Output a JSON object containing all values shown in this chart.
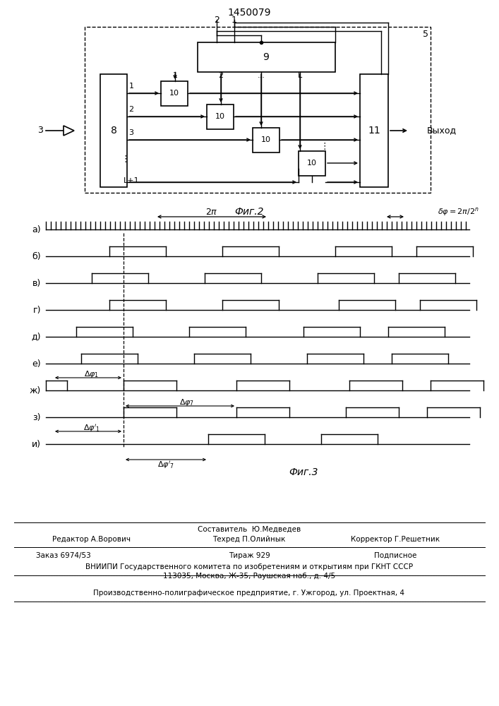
{
  "title": "1450079",
  "background": "#ffffff",
  "line_color": "#000000",
  "fig2_caption": "Фиг.2",
  "fig3_caption": "Фиг.3",
  "footer": {
    "line1_center": "Составитель  Ю.Медведев",
    "line2_left": "Редактор А.Ворович",
    "line2_center": "Техред П.Олийнык",
    "line2_right": "Корректор Г.Решетник",
    "line3_left": "Заказ 6974/53",
    "line3_center": "Тираж 929",
    "line3_right": "Подписное",
    "line4": "ВНИИПИ Государственного комитета по изобретениям и открытиям при ГКНТ СССР",
    "line5": "113035, Москва, Ж-35, Раушская наб., д. 4/5",
    "line6": "Производственно-полиграфическое предприятие, г. Ужгород, ул. Проектная, 4"
  }
}
